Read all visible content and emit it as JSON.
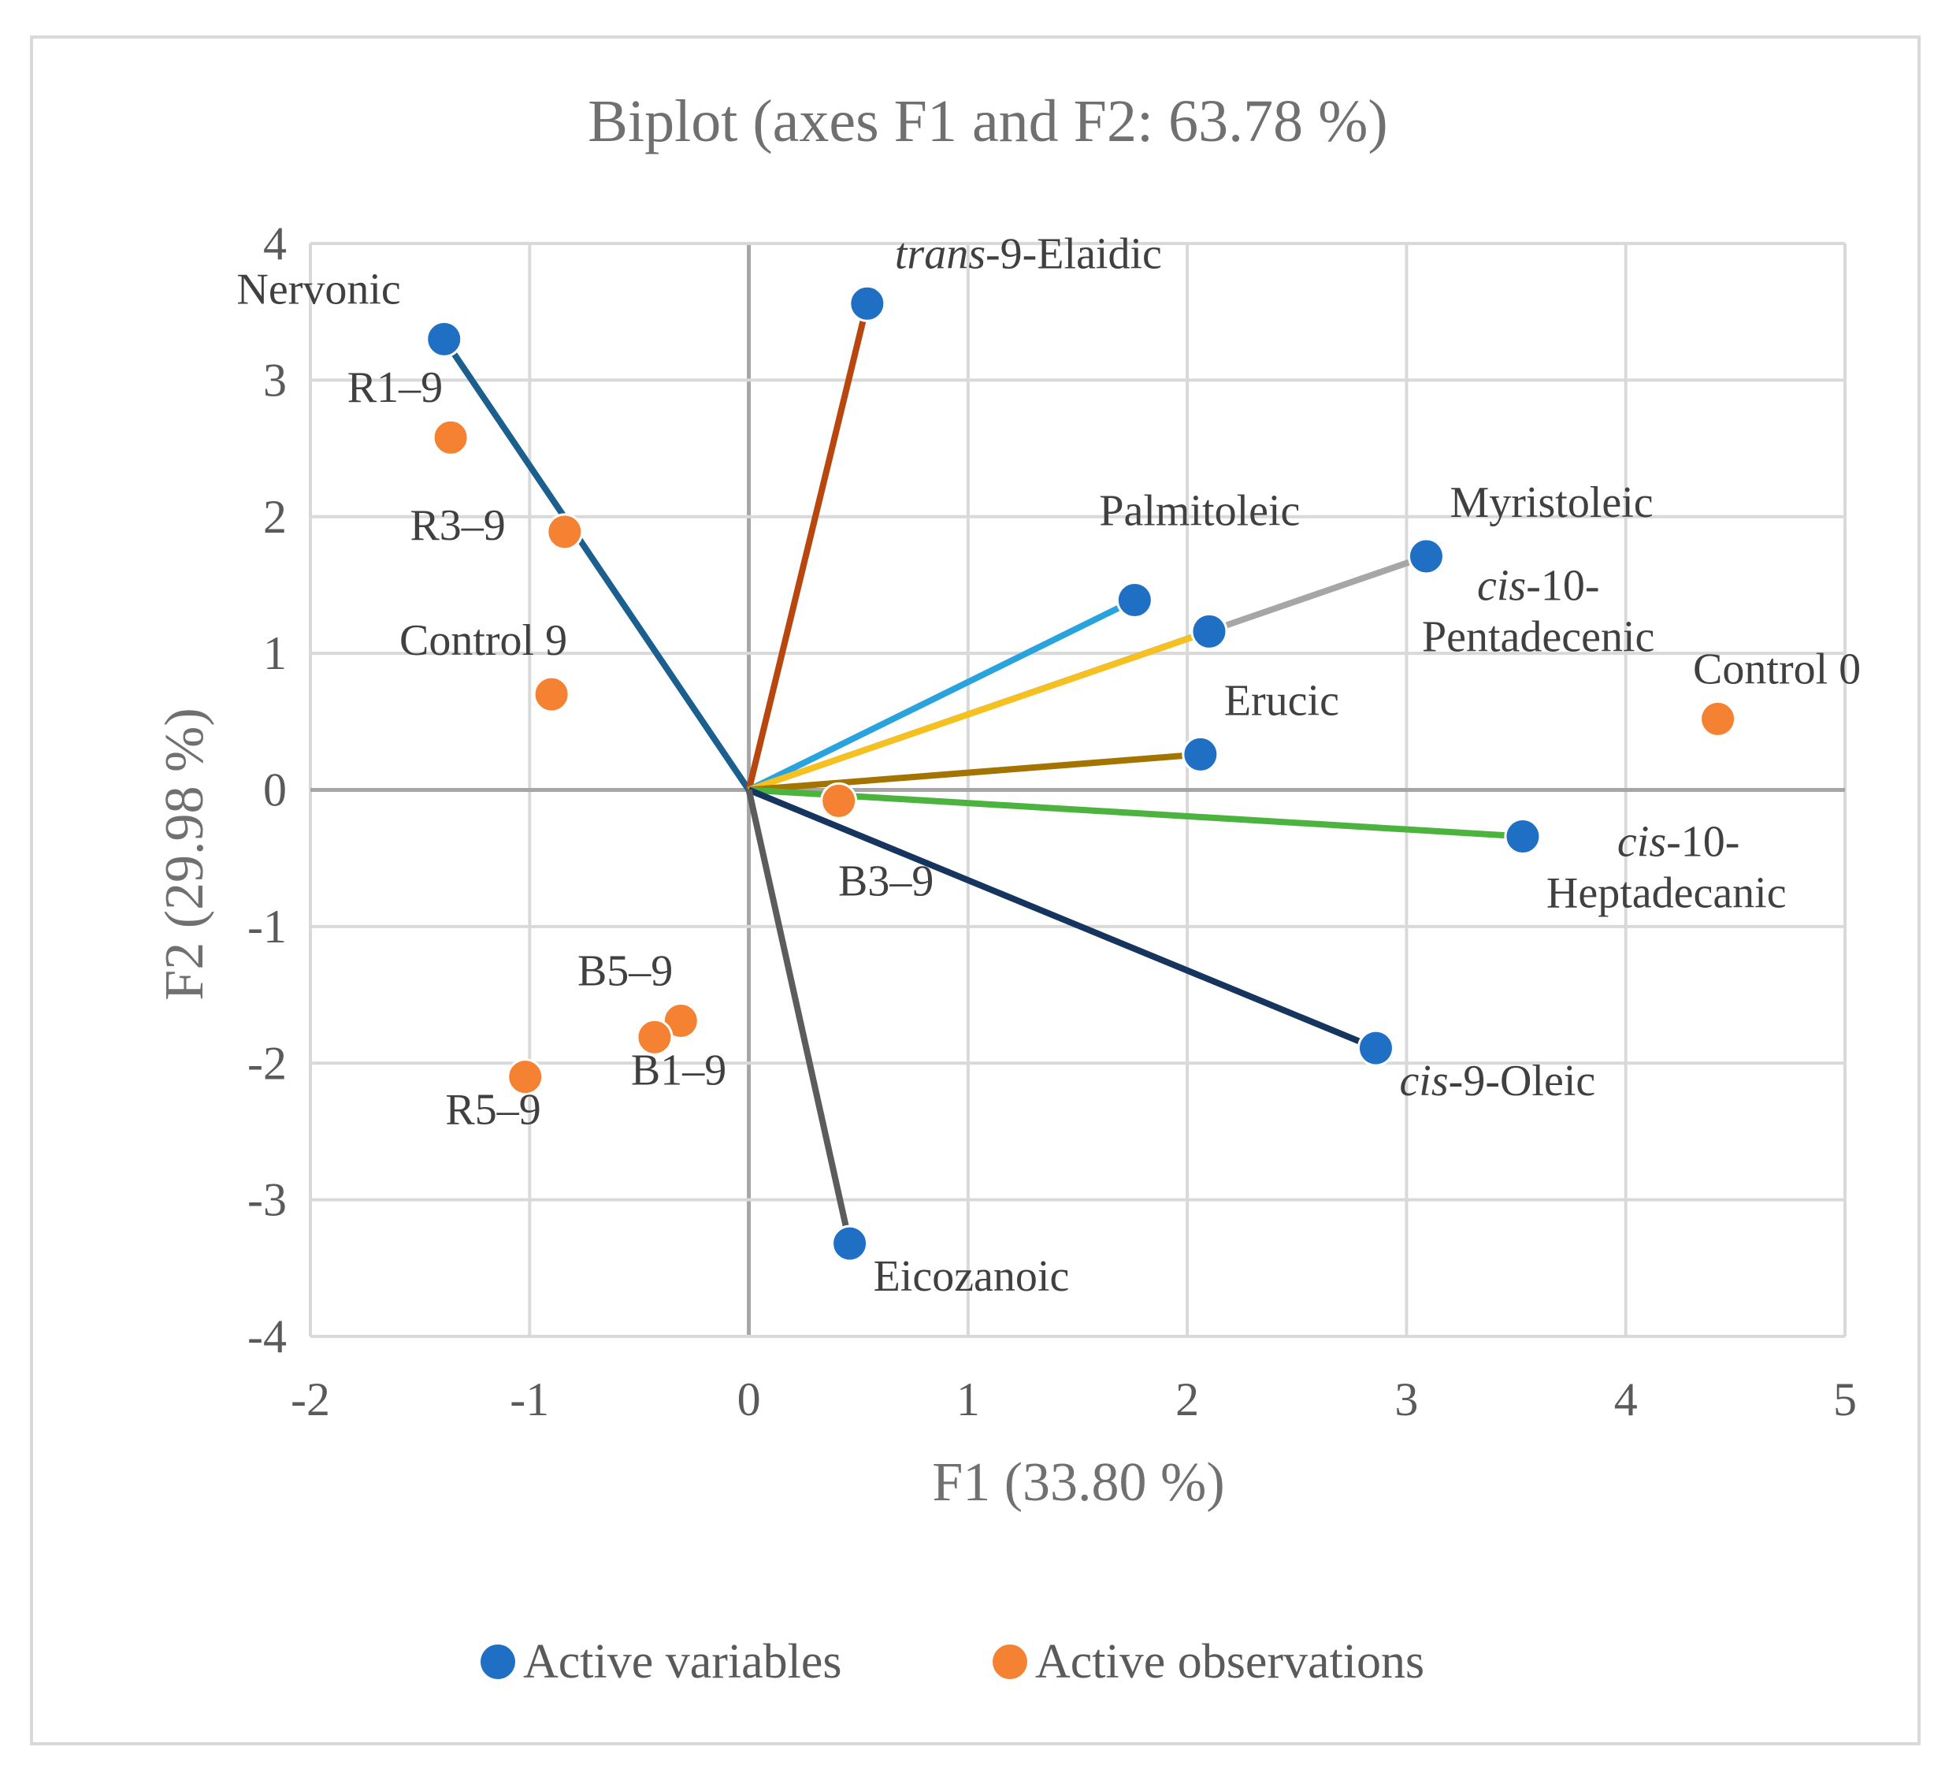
{
  "chart_data": {
    "type": "scatter",
    "title": "Biplot (axes F1 and F2: 63.78 %)",
    "xlabel": "F1 (33.80 %)",
    "ylabel": "F2 (29.98 %)",
    "xlim": [
      -2,
      5
    ],
    "ylim": [
      -4,
      4
    ],
    "xticks": [
      "-2",
      "-1",
      "0",
      "1",
      "2",
      "3",
      "4",
      "5"
    ],
    "yticks": [
      "-4",
      "-3",
      "-2",
      "-1",
      "0",
      "1",
      "2",
      "3",
      "4"
    ],
    "grid": true,
    "legend_position": "bottom",
    "legend": [
      {
        "name": "Active variables",
        "color": "#1f6fc5"
      },
      {
        "name": "Active observations",
        "color": "#f58233"
      }
    ],
    "series": [
      {
        "name": "Active variables",
        "color": "#1f6fc5",
        "points": [
          {
            "label": "Nervonic",
            "italic_prefix": "",
            "x": -1.39,
            "y": 3.3,
            "line_color": "#1b5f8f"
          },
          {
            "label": "-9-Elaidic",
            "italic_prefix": "trans",
            "x": 0.54,
            "y": 3.56,
            "line_color": "#b8470f"
          },
          {
            "label": "Palmitoleic",
            "italic_prefix": "",
            "x": 1.76,
            "y": 1.39,
            "line_color": "#29a3dd"
          },
          {
            "label": "Myristoleic",
            "italic_prefix": "",
            "x": 3.09,
            "y": 1.71,
            "line_color": "#a6a6a6"
          },
          {
            "label": "-10-",
            "label_line2": "Pentadecenic",
            "italic_prefix": "cis",
            "x": 2.1,
            "y": 1.16,
            "line_color": "#f6c11e"
          },
          {
            "label": "Erucic",
            "italic_prefix": "",
            "x": 2.06,
            "y": 0.26,
            "line_color": "#a37400"
          },
          {
            "label": "-10-",
            "label_line2": "Heptadecanic",
            "italic_prefix": "cis",
            "x": 3.53,
            "y": -0.34,
            "line_color": "#4cb33e"
          },
          {
            "label": "-9-Oleic",
            "italic_prefix": "cis",
            "x": 2.86,
            "y": -1.89,
            "line_color": "#15355e"
          },
          {
            "label": "Eicozanoic",
            "italic_prefix": "",
            "x": 0.46,
            "y": -3.32,
            "line_color": "#5c5c5c"
          }
        ]
      },
      {
        "name": "Active observations",
        "color": "#f58233",
        "points": [
          {
            "label": "R1–9",
            "x": -1.36,
            "y": 2.58
          },
          {
            "label": "R3–9",
            "x": -0.84,
            "y": 1.89
          },
          {
            "label": "Control 9",
            "x": -0.9,
            "y": 0.7
          },
          {
            "label": "B3–9",
            "x": 0.41,
            "y": -0.08
          },
          {
            "label": "B5–9",
            "x": -0.31,
            "y": -1.69
          },
          {
            "label": "B1–9",
            "x": -0.43,
            "y": -1.81
          },
          {
            "label": "R5–9",
            "x": -1.02,
            "y": -2.1
          },
          {
            "label": "Control 0",
            "x": 4.42,
            "y": 0.52
          }
        ]
      }
    ]
  }
}
